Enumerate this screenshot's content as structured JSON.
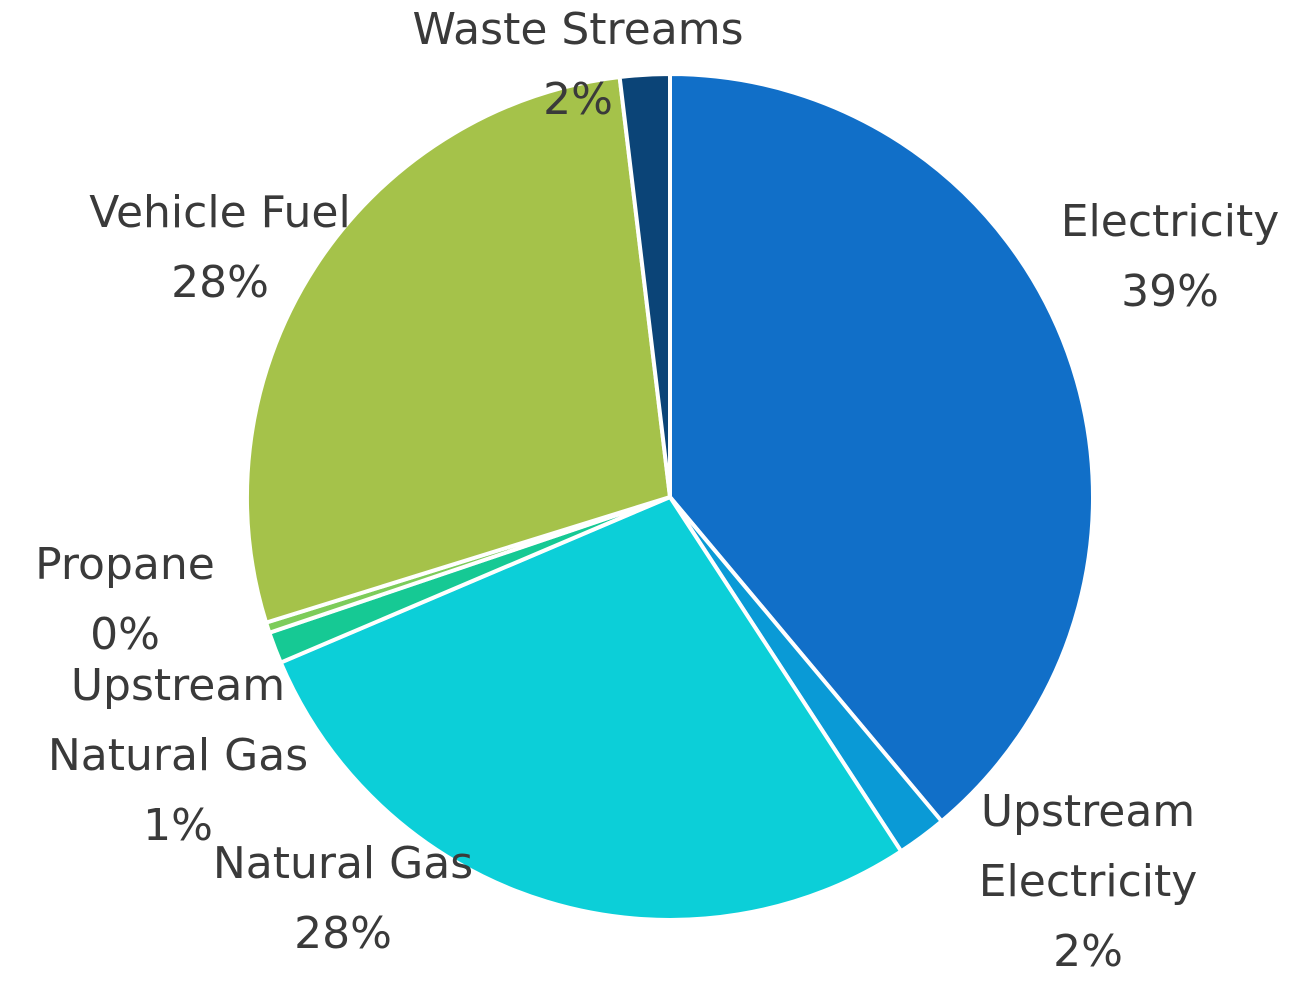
{
  "chart_data": {
    "type": "pie",
    "categories": [
      "Electricity",
      "Upstream Electricity",
      "Natural Gas",
      "Upstream Natural Gas",
      "Propane",
      "Vehicle Fuel",
      "Waste Streams"
    ],
    "values": [
      38.9,
      1.9,
      27.8,
      1.2,
      0.4,
      27.9,
      1.9
    ],
    "value_labels": [
      "39%",
      "2%",
      "28%",
      "1%",
      "0%",
      "28%",
      "2%"
    ],
    "colors": [
      "#116fc8",
      "#0a9ad6",
      "#0ccfd8",
      "#16c994",
      "#7dcc5a",
      "#a5c24a",
      "#0b4477"
    ]
  }
}
